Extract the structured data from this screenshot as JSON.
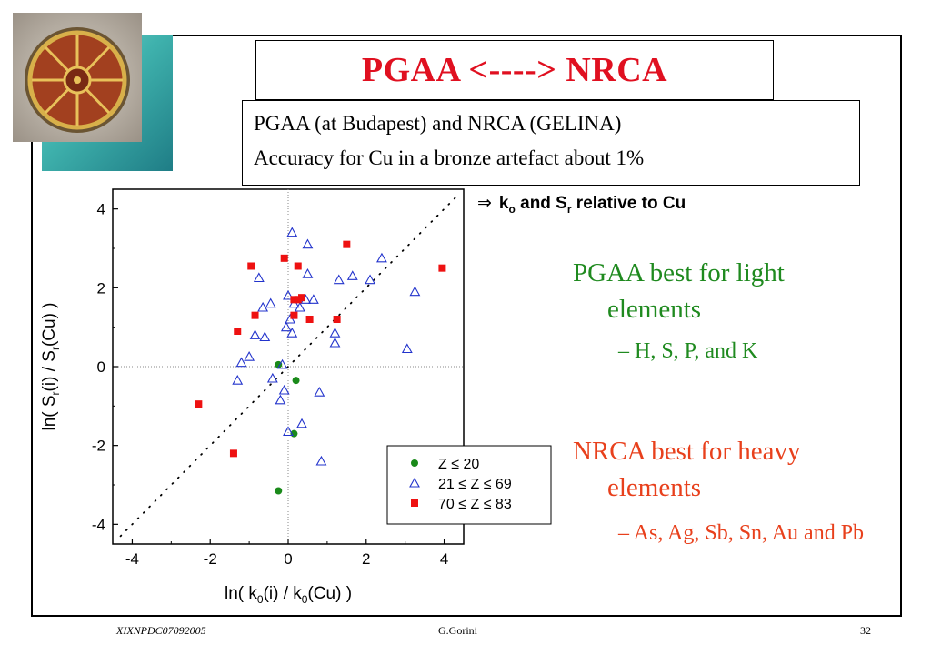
{
  "slide": {
    "title": "PGAA <----> NRCA",
    "subtitle_lines": [
      "PGAA (at Budapest) and NRCA (GELINA)",
      "Accuracy for Cu in a bronze artefact about 1%"
    ],
    "note_arrow": "⇒",
    "note_text_a": "k",
    "note_sub_a": "o",
    "note_text_b": " and S",
    "note_sub_b": "r",
    "note_text_c": " relative to Cu",
    "bullet1": "PGAA best for light elements",
    "bullet1_sub": "– H, S, P, and K",
    "bullet2": "NRCA best for heavy elements",
    "bullet2_sub": "– As, Ag, Sb, Sn, Au and Pb",
    "footer_left": "XIXNPDC07092005",
    "footer_center": "G.Gorini",
    "footer_right": "32"
  },
  "chart_data": {
    "type": "scatter",
    "xlabel_parts": [
      "ln( k",
      "0",
      "(i)  /  k",
      "0",
      "(Cu) )"
    ],
    "ylabel_parts": [
      "ln( S",
      "r",
      "(i)  /  S",
      "r",
      "(Cu) )"
    ],
    "xlim": [
      -4.5,
      4.5
    ],
    "ylim": [
      -4.5,
      4.5
    ],
    "xticks": [
      -4,
      -2,
      0,
      2,
      4
    ],
    "yticks": [
      -4,
      -2,
      0,
      2,
      4
    ],
    "reference_lines": [
      "x=0",
      "y=0",
      "y=x"
    ],
    "legend_position": "bottom-right",
    "colors": {
      "green": "#1a8a1a",
      "blue": "#2233cc",
      "red": "#ee1111"
    },
    "series": [
      {
        "name": "Z ≤ 20",
        "marker": "circle",
        "color": "#1a8a1a",
        "points": [
          [
            -0.25,
            0.05
          ],
          [
            0.2,
            -0.35
          ],
          [
            0.15,
            -1.7
          ],
          [
            -0.25,
            -3.15
          ]
        ]
      },
      {
        "name": "21 ≤ Z ≤ 69",
        "marker": "triangle",
        "color": "#2233cc",
        "points": [
          [
            0.1,
            3.4
          ],
          [
            0.5,
            3.1
          ],
          [
            2.4,
            2.75
          ],
          [
            -0.75,
            2.25
          ],
          [
            0.5,
            2.35
          ],
          [
            1.3,
            2.2
          ],
          [
            1.65,
            2.3
          ],
          [
            2.1,
            2.2
          ],
          [
            3.25,
            1.9
          ],
          [
            -0.65,
            1.5
          ],
          [
            -0.45,
            1.6
          ],
          [
            0.0,
            1.8
          ],
          [
            0.15,
            1.6
          ],
          [
            0.3,
            1.5
          ],
          [
            0.45,
            1.7
          ],
          [
            0.65,
            1.7
          ],
          [
            0.05,
            1.2
          ],
          [
            -0.05,
            1.0
          ],
          [
            0.1,
            0.85
          ],
          [
            1.2,
            0.85
          ],
          [
            -0.85,
            0.8
          ],
          [
            -0.6,
            0.75
          ],
          [
            1.2,
            0.6
          ],
          [
            3.05,
            0.45
          ],
          [
            -1.0,
            0.25
          ],
          [
            -1.2,
            0.1
          ],
          [
            -0.15,
            0.05
          ],
          [
            -0.4,
            -0.3
          ],
          [
            -1.3,
            -0.35
          ],
          [
            -0.1,
            -0.6
          ],
          [
            0.8,
            -0.65
          ],
          [
            -0.2,
            -0.85
          ],
          [
            0.35,
            -1.45
          ],
          [
            0.0,
            -1.65
          ],
          [
            0.85,
            -2.4
          ]
        ]
      },
      {
        "name": "70 ≤ Z ≤ 83",
        "marker": "square",
        "color": "#ee1111",
        "points": [
          [
            1.5,
            3.1
          ],
          [
            -0.1,
            2.75
          ],
          [
            0.25,
            2.55
          ],
          [
            -0.95,
            2.55
          ],
          [
            3.95,
            2.5
          ],
          [
            0.35,
            1.75
          ],
          [
            0.15,
            1.7
          ],
          [
            0.25,
            1.7
          ],
          [
            -0.85,
            1.3
          ],
          [
            0.15,
            1.3
          ],
          [
            0.55,
            1.2
          ],
          [
            1.25,
            1.2
          ],
          [
            -1.3,
            0.9
          ],
          [
            -2.3,
            -0.95
          ],
          [
            -1.4,
            -2.2
          ]
        ]
      }
    ]
  }
}
